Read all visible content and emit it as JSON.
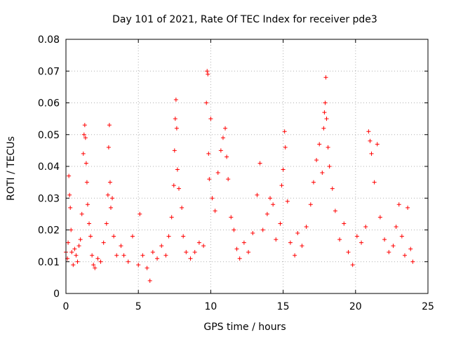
{
  "chart_data": {
    "type": "scatter",
    "title": "Day 101 of 2021, Rate Of TEC Index for receiver pde3",
    "xlabel": "GPS time / hours",
    "ylabel": "ROTI / TECUs",
    "xlim": [
      0,
      25
    ],
    "ylim": [
      0,
      0.08
    ],
    "xticks": [
      "0",
      "5",
      "10",
      "15",
      "20",
      "25"
    ],
    "yticks": [
      "0",
      "0.01",
      "0.02",
      "0.03",
      "0.04",
      "0.05",
      "0.06",
      "0.07",
      "0.08"
    ],
    "grid": true,
    "marker": "+",
    "series": [
      {
        "name": "ROTI",
        "color": "#ff0000",
        "points": [
          [
            0.0,
            0.013
          ],
          [
            0.1,
            0.011
          ],
          [
            0.15,
            0.016
          ],
          [
            0.2,
            0.037
          ],
          [
            0.25,
            0.031
          ],
          [
            0.3,
            0.027
          ],
          [
            0.35,
            0.02
          ],
          [
            0.4,
            0.013
          ],
          [
            0.5,
            0.009
          ],
          [
            0.6,
            0.014
          ],
          [
            0.7,
            0.012
          ],
          [
            0.8,
            0.01
          ],
          [
            0.9,
            0.015
          ],
          [
            1.0,
            0.017
          ],
          [
            1.1,
            0.025
          ],
          [
            1.2,
            0.044
          ],
          [
            1.25,
            0.05
          ],
          [
            1.3,
            0.053
          ],
          [
            1.35,
            0.049
          ],
          [
            1.4,
            0.041
          ],
          [
            1.45,
            0.035
          ],
          [
            1.5,
            0.028
          ],
          [
            1.6,
            0.022
          ],
          [
            1.7,
            0.018
          ],
          [
            1.8,
            0.012
          ],
          [
            1.9,
            0.009
          ],
          [
            2.0,
            0.008
          ],
          [
            2.2,
            0.011
          ],
          [
            2.4,
            0.01
          ],
          [
            2.6,
            0.016
          ],
          [
            2.8,
            0.022
          ],
          [
            2.9,
            0.031
          ],
          [
            2.95,
            0.046
          ],
          [
            3.0,
            0.053
          ],
          [
            3.05,
            0.035
          ],
          [
            3.1,
            0.027
          ],
          [
            3.2,
            0.03
          ],
          [
            3.3,
            0.018
          ],
          [
            3.5,
            0.012
          ],
          [
            3.8,
            0.015
          ],
          [
            4.0,
            0.012
          ],
          [
            4.3,
            0.01
          ],
          [
            4.6,
            0.018
          ],
          [
            5.0,
            0.009
          ],
          [
            5.1,
            0.025
          ],
          [
            5.3,
            0.012
          ],
          [
            5.6,
            0.008
          ],
          [
            5.8,
            0.004
          ],
          [
            6.0,
            0.013
          ],
          [
            6.3,
            0.011
          ],
          [
            6.6,
            0.015
          ],
          [
            6.9,
            0.012
          ],
          [
            7.1,
            0.018
          ],
          [
            7.3,
            0.024
          ],
          [
            7.45,
            0.034
          ],
          [
            7.5,
            0.045
          ],
          [
            7.55,
            0.055
          ],
          [
            7.6,
            0.061
          ],
          [
            7.65,
            0.052
          ],
          [
            7.7,
            0.039
          ],
          [
            7.8,
            0.033
          ],
          [
            8.0,
            0.027
          ],
          [
            8.1,
            0.018
          ],
          [
            8.3,
            0.013
          ],
          [
            8.6,
            0.011
          ],
          [
            8.9,
            0.013
          ],
          [
            9.2,
            0.016
          ],
          [
            9.5,
            0.015
          ],
          [
            9.7,
            0.06
          ],
          [
            9.75,
            0.07
          ],
          [
            9.8,
            0.069
          ],
          [
            9.85,
            0.044
          ],
          [
            9.9,
            0.036
          ],
          [
            10.0,
            0.055
          ],
          [
            10.1,
            0.03
          ],
          [
            10.3,
            0.026
          ],
          [
            10.5,
            0.038
          ],
          [
            10.7,
            0.045
          ],
          [
            10.85,
            0.049
          ],
          [
            11.0,
            0.052
          ],
          [
            11.1,
            0.043
          ],
          [
            11.2,
            0.036
          ],
          [
            11.4,
            0.024
          ],
          [
            11.6,
            0.02
          ],
          [
            11.8,
            0.014
          ],
          [
            12.0,
            0.011
          ],
          [
            12.3,
            0.016
          ],
          [
            12.6,
            0.013
          ],
          [
            12.9,
            0.019
          ],
          [
            13.2,
            0.031
          ],
          [
            13.4,
            0.041
          ],
          [
            13.6,
            0.02
          ],
          [
            13.9,
            0.025
          ],
          [
            14.1,
            0.03
          ],
          [
            14.3,
            0.028
          ],
          [
            14.5,
            0.017
          ],
          [
            14.8,
            0.022
          ],
          [
            14.9,
            0.034
          ],
          [
            15.0,
            0.039
          ],
          [
            15.1,
            0.051
          ],
          [
            15.15,
            0.046
          ],
          [
            15.3,
            0.029
          ],
          [
            15.5,
            0.016
          ],
          [
            15.8,
            0.012
          ],
          [
            16.0,
            0.019
          ],
          [
            16.3,
            0.015
          ],
          [
            16.6,
            0.021
          ],
          [
            16.9,
            0.028
          ],
          [
            17.1,
            0.035
          ],
          [
            17.3,
            0.042
          ],
          [
            17.5,
            0.047
          ],
          [
            17.7,
            0.038
          ],
          [
            17.8,
            0.052
          ],
          [
            17.85,
            0.057
          ],
          [
            17.9,
            0.06
          ],
          [
            17.95,
            0.068
          ],
          [
            18.0,
            0.055
          ],
          [
            18.1,
            0.046
          ],
          [
            18.2,
            0.04
          ],
          [
            18.4,
            0.033
          ],
          [
            18.6,
            0.026
          ],
          [
            18.9,
            0.017
          ],
          [
            19.2,
            0.022
          ],
          [
            19.5,
            0.013
          ],
          [
            19.8,
            0.009
          ],
          [
            20.1,
            0.018
          ],
          [
            20.4,
            0.016
          ],
          [
            20.7,
            0.021
          ],
          [
            20.9,
            0.051
          ],
          [
            21.0,
            0.048
          ],
          [
            21.1,
            0.044
          ],
          [
            21.3,
            0.035
          ],
          [
            21.5,
            0.047
          ],
          [
            21.7,
            0.024
          ],
          [
            22.0,
            0.017
          ],
          [
            22.3,
            0.013
          ],
          [
            22.6,
            0.015
          ],
          [
            22.8,
            0.021
          ],
          [
            23.0,
            0.028
          ],
          [
            23.2,
            0.018
          ],
          [
            23.4,
            0.012
          ],
          [
            23.6,
            0.027
          ],
          [
            23.8,
            0.014
          ],
          [
            23.95,
            0.01
          ]
        ]
      }
    ]
  }
}
